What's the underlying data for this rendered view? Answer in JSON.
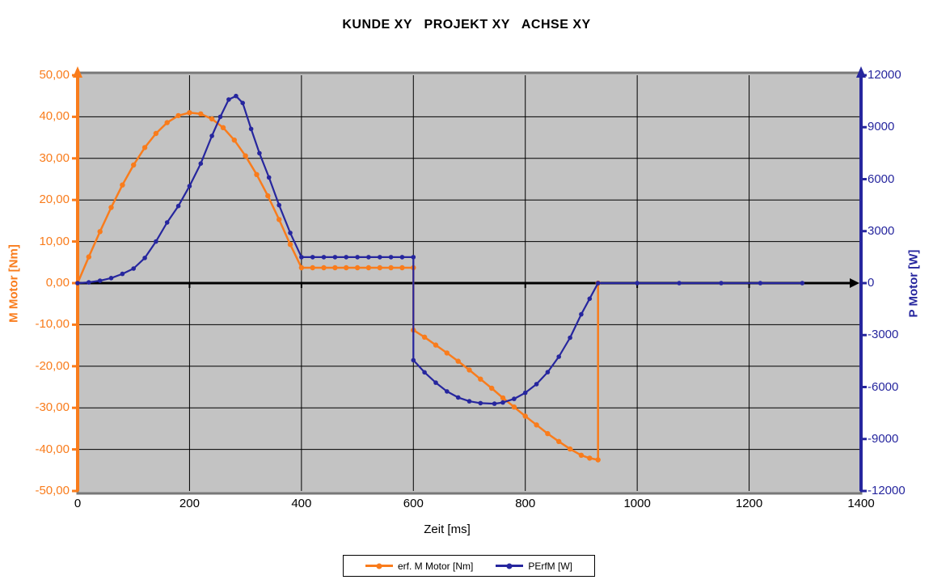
{
  "title": "KUNDE XY   PROJEKT XY   ACHSE XY",
  "colors": {
    "torque_orange": "#F97C1C",
    "power_navy": "#26269E",
    "plot_background": "#C3C3C3",
    "plot_border_gray": "#787878",
    "gridline_black": "#000000",
    "zero_axis_black": "#000000",
    "page_background": "#FFFFFF",
    "legend_background": "#FFFFFF"
  },
  "chart_data": {
    "type": "line",
    "title": "KUNDE XY   PROJEKT XY   ACHSE XY",
    "xlabel": "Zeit [ms]",
    "x_axis": {
      "min": 0,
      "max": 1400,
      "tick_interval": 200,
      "tick_labels": [
        "0",
        "200",
        "400",
        "600",
        "800",
        "1000",
        "1200",
        "1400"
      ]
    },
    "y_axis_left": {
      "label": "M Motor [Nm]",
      "min": -50,
      "max": 50,
      "tick_interval": 10,
      "tick_labels": [
        "50,00",
        "40,00",
        "30,00",
        "20,00",
        "10,00",
        "0,00",
        "-10,00",
        "-20,00",
        "-30,00",
        "-40,00",
        "-50,00"
      ]
    },
    "y_axis_right": {
      "label": "P Motor [W]",
      "min": -12000,
      "max": 12000,
      "tick_interval": 3000,
      "tick_labels": [
        "12000",
        "9000",
        "6000",
        "3000",
        "0",
        "-3000",
        "-6000",
        "-9000",
        "-12000"
      ]
    },
    "grid": true,
    "legend_position": "bottom-center",
    "series": [
      {
        "name": "erf. M Motor [Nm]",
        "axis": "left",
        "color": "#F97C1C",
        "marker": "circle",
        "points": [
          [
            0,
            0.0
          ],
          [
            20,
            6.3
          ],
          [
            40,
            12.4
          ],
          [
            60,
            18.2
          ],
          [
            80,
            23.6
          ],
          [
            100,
            28.4
          ],
          [
            120,
            32.6
          ],
          [
            140,
            36.0
          ],
          [
            160,
            38.6
          ],
          [
            180,
            40.3
          ],
          [
            200,
            41.0
          ],
          [
            220,
            40.7
          ],
          [
            240,
            39.5
          ],
          [
            260,
            37.4
          ],
          [
            280,
            34.4
          ],
          [
            300,
            30.6
          ],
          [
            320,
            26.1
          ],
          [
            340,
            21.0
          ],
          [
            360,
            15.3
          ],
          [
            380,
            9.3
          ],
          [
            400,
            3.7
          ],
          [
            420,
            3.7
          ],
          [
            440,
            3.7
          ],
          [
            460,
            3.7
          ],
          [
            480,
            3.7
          ],
          [
            500,
            3.7
          ],
          [
            520,
            3.7
          ],
          [
            540,
            3.7
          ],
          [
            560,
            3.7
          ],
          [
            580,
            3.7
          ],
          [
            600,
            3.7
          ],
          [
            600,
            -11.3
          ],
          [
            620,
            -13.0
          ],
          [
            640,
            -14.9
          ],
          [
            660,
            -16.8
          ],
          [
            680,
            -18.8
          ],
          [
            700,
            -20.9
          ],
          [
            720,
            -23.1
          ],
          [
            740,
            -25.3
          ],
          [
            760,
            -27.6
          ],
          [
            780,
            -29.8
          ],
          [
            800,
            -32.0
          ],
          [
            820,
            -34.1
          ],
          [
            840,
            -36.2
          ],
          [
            860,
            -38.1
          ],
          [
            880,
            -39.9
          ],
          [
            900,
            -41.4
          ],
          [
            915,
            -42.1
          ],
          [
            930,
            -42.5
          ],
          [
            930,
            0.0
          ]
        ]
      },
      {
        "name": "PErfM [W]",
        "axis": "right",
        "color": "#26269E",
        "marker": "circle",
        "points": [
          [
            0,
            0
          ],
          [
            20,
            40
          ],
          [
            40,
            140
          ],
          [
            60,
            290
          ],
          [
            80,
            530
          ],
          [
            100,
            840
          ],
          [
            120,
            1450
          ],
          [
            140,
            2400
          ],
          [
            160,
            3500
          ],
          [
            180,
            4450
          ],
          [
            200,
            5600
          ],
          [
            220,
            6900
          ],
          [
            240,
            8500
          ],
          [
            255,
            9600
          ],
          [
            270,
            10600
          ],
          [
            283,
            10800
          ],
          [
            295,
            10400
          ],
          [
            310,
            8900
          ],
          [
            325,
            7500
          ],
          [
            342,
            6100
          ],
          [
            360,
            4500
          ],
          [
            380,
            2900
          ],
          [
            400,
            1500
          ],
          [
            420,
            1500
          ],
          [
            440,
            1500
          ],
          [
            460,
            1500
          ],
          [
            480,
            1500
          ],
          [
            500,
            1500
          ],
          [
            520,
            1500
          ],
          [
            540,
            1500
          ],
          [
            560,
            1500
          ],
          [
            580,
            1500
          ],
          [
            600,
            1500
          ],
          [
            600,
            -4450
          ],
          [
            620,
            -5150
          ],
          [
            640,
            -5750
          ],
          [
            660,
            -6250
          ],
          [
            680,
            -6600
          ],
          [
            700,
            -6820
          ],
          [
            720,
            -6930
          ],
          [
            745,
            -6960
          ],
          [
            760,
            -6890
          ],
          [
            780,
            -6680
          ],
          [
            800,
            -6330
          ],
          [
            820,
            -5830
          ],
          [
            840,
            -5140
          ],
          [
            860,
            -4250
          ],
          [
            880,
            -3150
          ],
          [
            900,
            -1800
          ],
          [
            915,
            -900
          ],
          [
            930,
            0
          ],
          [
            1000,
            0
          ],
          [
            1075,
            0
          ],
          [
            1150,
            0
          ],
          [
            1220,
            0
          ],
          [
            1295,
            0
          ]
        ]
      }
    ]
  },
  "legend": {
    "entries": [
      {
        "label": "erf. M Motor [Nm]"
      },
      {
        "label": "PErfM [W]"
      }
    ]
  }
}
